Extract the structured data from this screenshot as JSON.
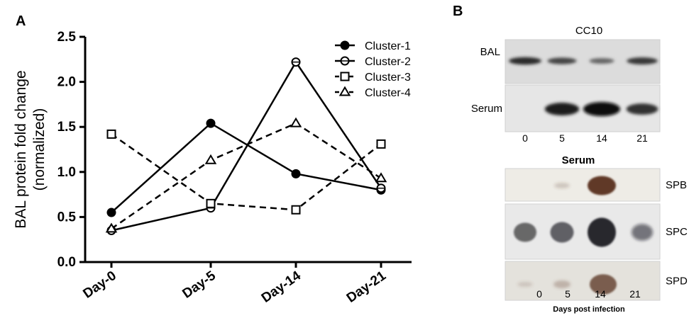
{
  "panel_a": {
    "letter": "A"
  },
  "panel_b": {
    "letter": "B",
    "top_title": "CC10",
    "top_rows": [
      {
        "label": "BAL",
        "intensity": [
          0.75,
          0.55,
          0.3,
          0.65
        ]
      },
      {
        "label": "Serum",
        "intensity": [
          0.0,
          0.85,
          1.0,
          0.7
        ]
      }
    ],
    "top_lanes": [
      "0",
      "5",
      "14",
      "21"
    ],
    "bottom_title": "Serum",
    "bottom_rows": [
      {
        "label": "SPB",
        "intensity": [
          0.0,
          0.08,
          1.0,
          0.0
        ]
      },
      {
        "label": "SPC",
        "intensity": [
          0.6,
          0.65,
          1.0,
          0.5
        ]
      },
      {
        "label": "SPD",
        "intensity": [
          0.05,
          0.2,
          0.9,
          0.0
        ]
      }
    ],
    "bottom_lanes": [
      "0",
      "5",
      "14",
      "21"
    ],
    "xlabel": "Days post infection"
  },
  "chart_data": {
    "type": "line",
    "categories": [
      "Day-0",
      "Day-5",
      "Day-14",
      "Day-21"
    ],
    "ylabel_line1": "BAL protein fold change",
    "ylabel_line2": "(normalized)",
    "ylim": [
      0.0,
      2.5
    ],
    "yticks": [
      "0.0",
      "0.5",
      "1.0",
      "1.5",
      "2.0",
      "2.5"
    ],
    "grid": false,
    "legend_position": "top-right",
    "series": [
      {
        "name": "Cluster-1",
        "marker": "filled-circle",
        "dash": "solid",
        "values": [
          0.55,
          1.54,
          0.98,
          0.8
        ]
      },
      {
        "name": "Cluster-2",
        "marker": "open-circle",
        "dash": "solid",
        "values": [
          0.35,
          0.6,
          2.22,
          0.82
        ]
      },
      {
        "name": "Cluster-3",
        "marker": "open-square",
        "dash": "dashed",
        "values": [
          1.42,
          0.65,
          0.58,
          1.31
        ]
      },
      {
        "name": "Cluster-4",
        "marker": "open-triangle",
        "dash": "dashed",
        "values": [
          0.37,
          1.13,
          1.54,
          0.93
        ]
      }
    ]
  }
}
